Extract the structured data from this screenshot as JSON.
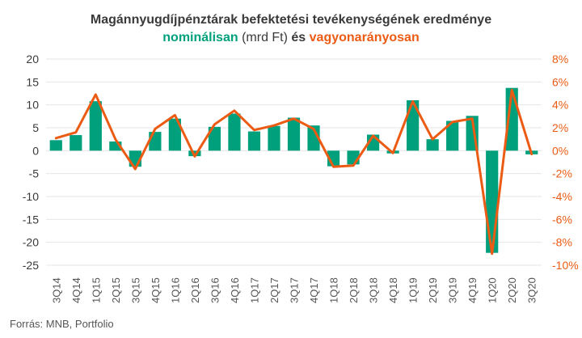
{
  "title": {
    "line1": "Magánnyugdíjpénztárak befektetési tevékenységének eredménye",
    "line2_part1": "nominálisan",
    "line2_part2": "(mrd Ft)",
    "line2_part3": "és",
    "line2_part4": "vagyonarányosan"
  },
  "source": "Forrás: MNB, Portfolio",
  "colors": {
    "bar": "#00a07d",
    "line": "#ec5b13",
    "grid": "#e6e6e6",
    "axis_text_left": "#3a3a3a",
    "axis_text_right": "#ec5b13"
  },
  "chart_data": {
    "type": "bar",
    "categories": [
      "3Q14",
      "4Q14",
      "1Q15",
      "2Q15",
      "3Q15",
      "4Q15",
      "1Q16",
      "2Q16",
      "3Q16",
      "4Q16",
      "1Q17",
      "2Q17",
      "3Q17",
      "4Q17",
      "1Q18",
      "2Q18",
      "3Q18",
      "4Q18",
      "1Q19",
      "2Q19",
      "3Q19",
      "4Q19",
      "1Q20",
      "2Q20",
      "3Q20"
    ],
    "series": [
      {
        "name": "nominálisan",
        "type": "bar",
        "axis": "left",
        "values": [
          2.3,
          3.4,
          10.8,
          2.0,
          -3.5,
          4.1,
          7.0,
          -1.2,
          5.2,
          8.1,
          4.2,
          5.4,
          7.2,
          5.5,
          -3.4,
          -3.0,
          3.5,
          -0.6,
          11.0,
          2.5,
          6.5,
          7.6,
          -22.3,
          13.7,
          -0.8
        ]
      },
      {
        "name": "vagyonarányosan",
        "type": "line",
        "axis": "right",
        "values": [
          1.1,
          1.6,
          4.9,
          1.0,
          -1.6,
          1.9,
          3.1,
          -0.5,
          2.3,
          3.5,
          1.8,
          2.2,
          2.8,
          1.9,
          -1.4,
          -1.3,
          1.3,
          -0.2,
          4.3,
          1.0,
          2.5,
          2.8,
          -9.0,
          5.3,
          -0.3
        ]
      }
    ],
    "y_left": {
      "lim": [
        -25,
        20
      ],
      "ticks": [
        "20",
        "15",
        "10",
        "5",
        "0",
        "-5",
        "-10",
        "-15",
        "-20",
        "-25"
      ]
    },
    "y_right": {
      "lim": [
        -10,
        8
      ],
      "ticks": [
        "8%",
        "6%",
        "4%",
        "2%",
        "0%",
        "-2%",
        "-4%",
        "-6%",
        "-8%",
        "-10%"
      ]
    },
    "grid": true
  }
}
